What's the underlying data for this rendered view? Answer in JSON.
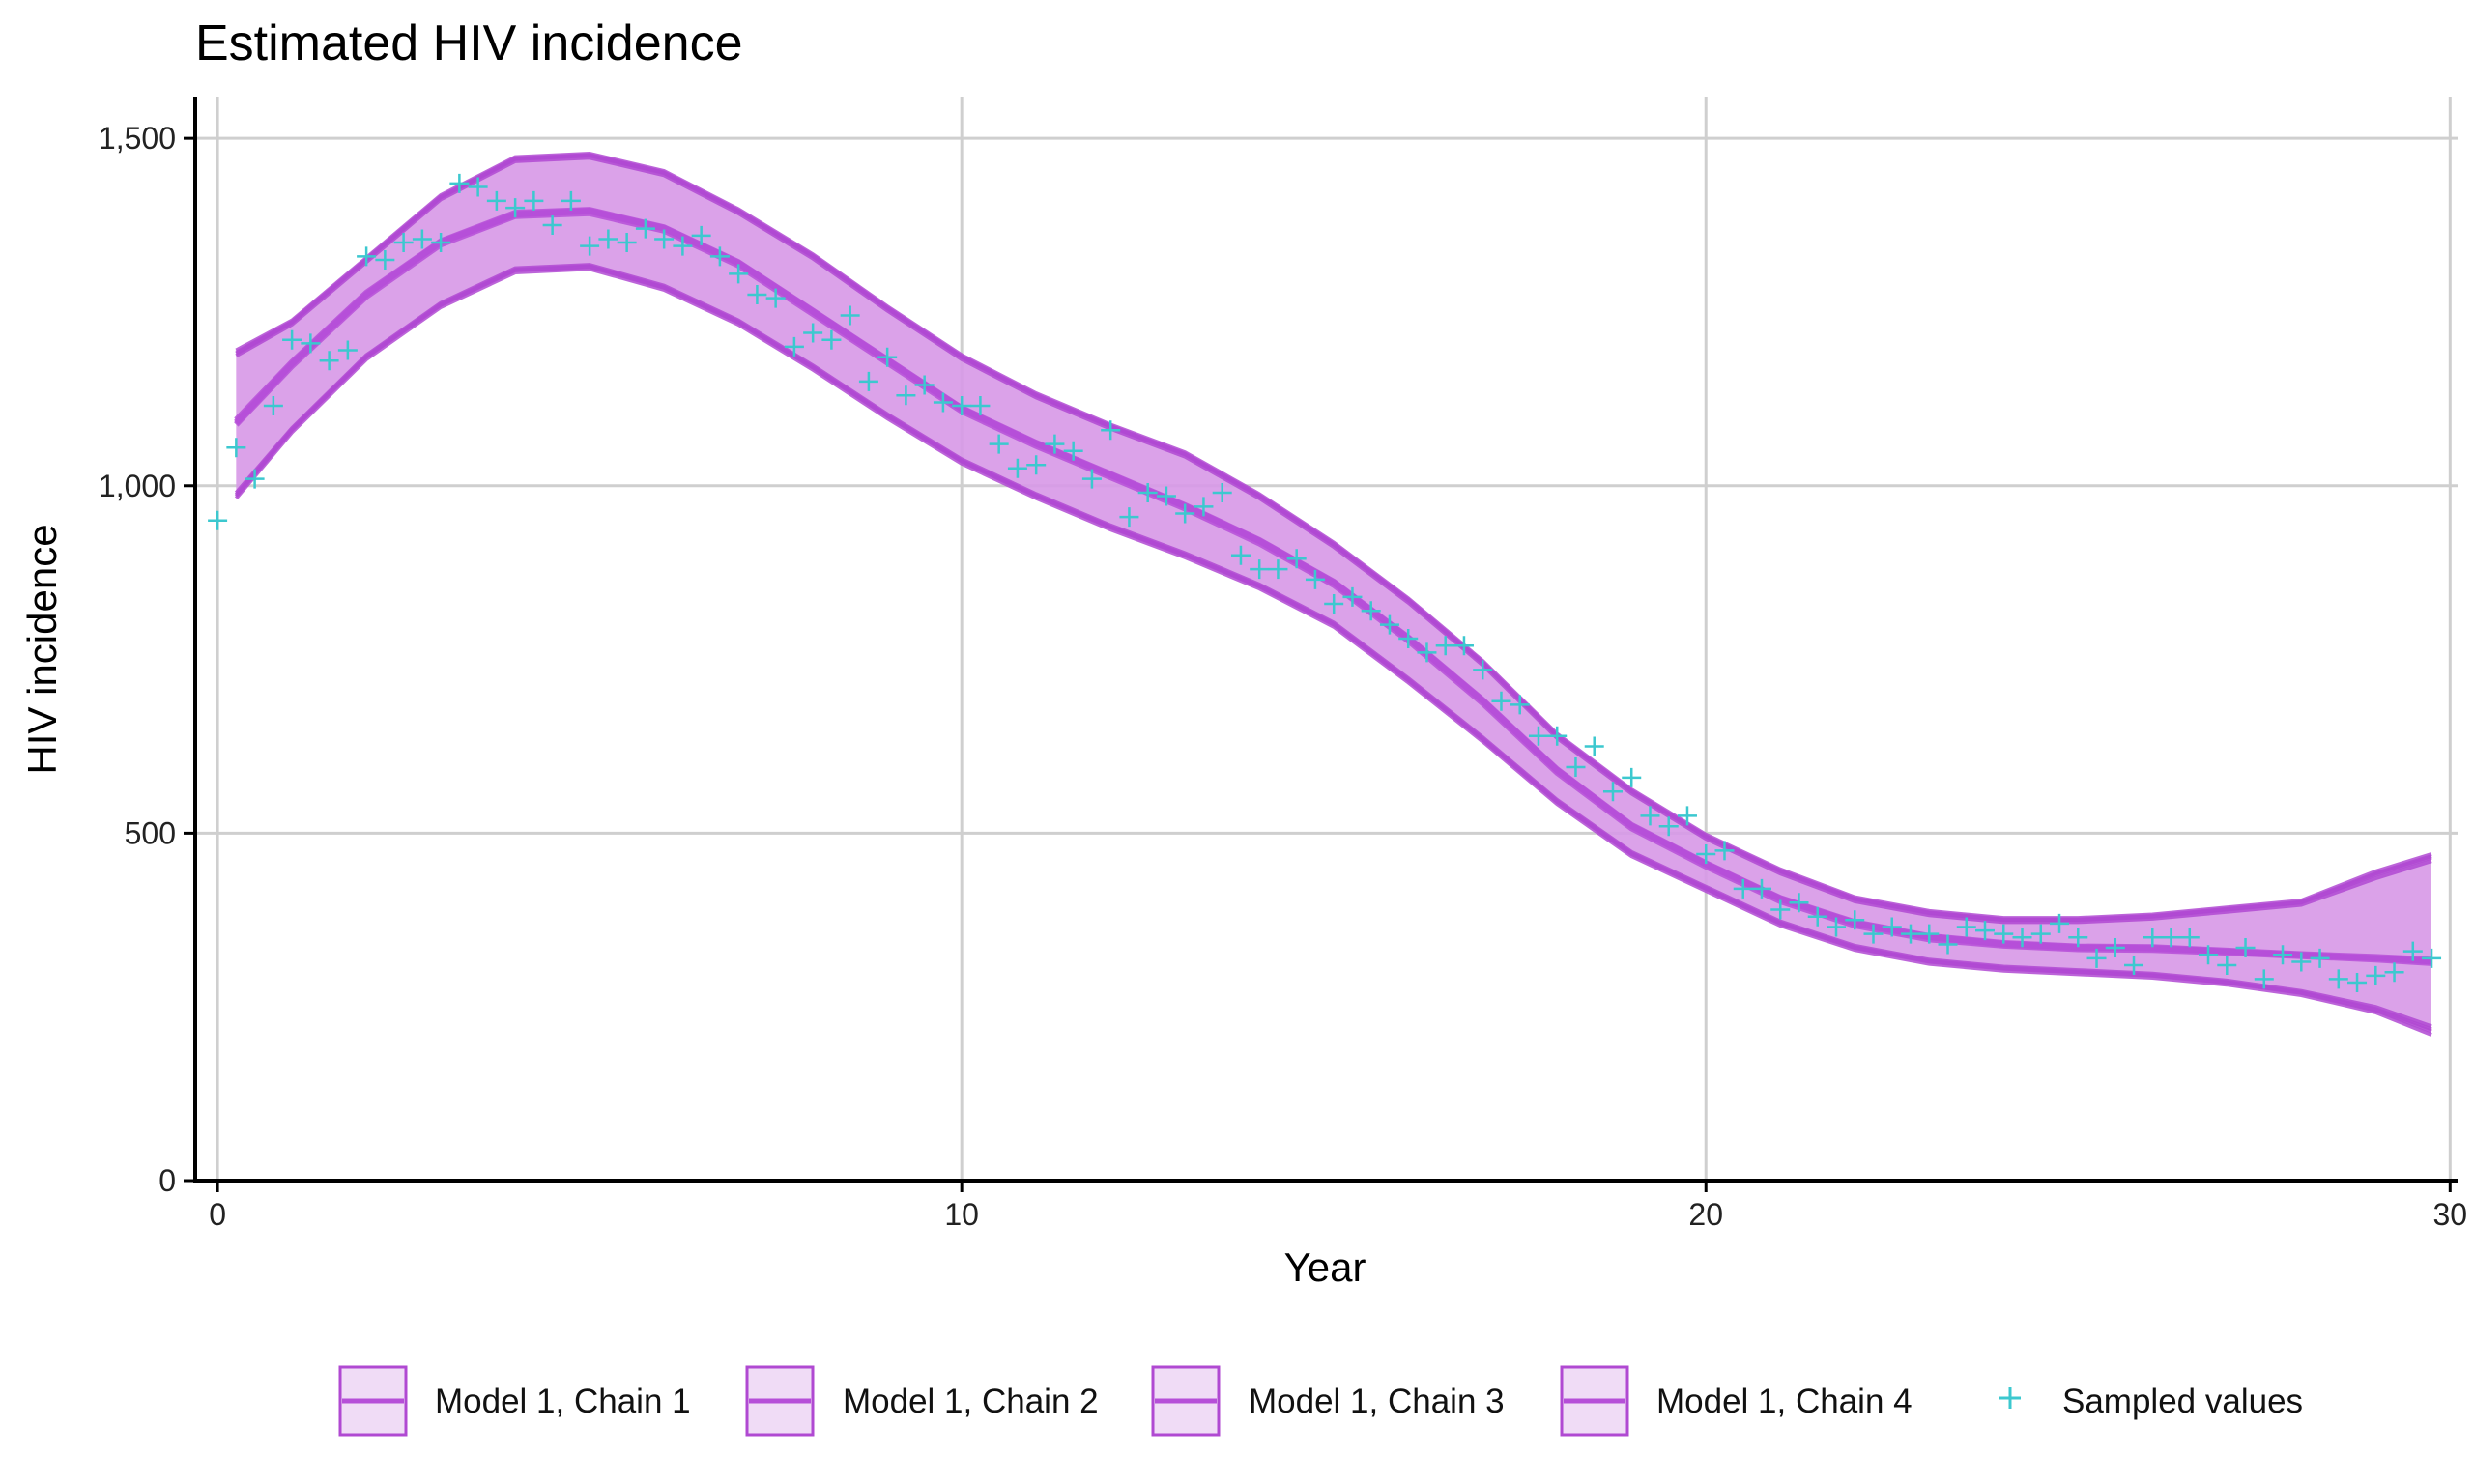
{
  "chart_data": {
    "type": "area",
    "title": "Estimated HIV incidence",
    "xlabel": "Year",
    "ylabel": "HIV incidence",
    "xlim": [
      -0.3,
      30.1
    ],
    "ylim": [
      0,
      1560
    ],
    "xticks": [
      0,
      10,
      20,
      30
    ],
    "xtick_labels": [
      "0",
      "10",
      "20",
      "30"
    ],
    "yticks": [
      0,
      500,
      1000,
      1500
    ],
    "ytick_labels": [
      "0",
      "500",
      "1,000",
      "1,500"
    ],
    "grid": true,
    "legend_position": "bottom",
    "colors": {
      "band_fill": "#d79ae6",
      "band_edge": "#b049d2",
      "median_line": "#b64fd8",
      "points": "#3cc8cf",
      "legend_key_fill": "#f0dcf6"
    },
    "series": [
      {
        "name": "Model 1, Chain 1",
        "x": [
          0.25,
          1,
          2,
          3,
          4,
          5,
          6,
          7,
          8,
          9,
          10,
          11,
          12,
          13,
          14,
          15,
          16,
          17,
          18,
          19,
          20,
          21,
          22,
          23,
          24,
          25,
          26,
          27,
          28,
          29,
          29.75
        ],
        "median": [
          1090,
          1175,
          1275,
          1350,
          1390,
          1395,
          1370,
          1320,
          1250,
          1180,
          1110,
          1060,
          1015,
          970,
          920,
          860,
          780,
          690,
          590,
          510,
          455,
          405,
          370,
          350,
          340,
          335,
          335,
          330,
          325,
          320,
          315
        ],
        "lower": [
          985,
          1080,
          1185,
          1260,
          1310,
          1315,
          1285,
          1235,
          1170,
          1100,
          1035,
          985,
          940,
          900,
          855,
          800,
          720,
          635,
          545,
          470,
          420,
          370,
          335,
          315,
          305,
          300,
          295,
          285,
          270,
          245,
          215
        ],
        "upper": [
          1190,
          1235,
          1325,
          1415,
          1470,
          1475,
          1450,
          1395,
          1330,
          1255,
          1185,
          1130,
          1085,
          1045,
          985,
          915,
          835,
          745,
          640,
          560,
          495,
          445,
          405,
          385,
          375,
          375,
          380,
          390,
          400,
          440,
          465
        ]
      },
      {
        "name": "Model 1, Chain 2",
        "x": [
          0.25,
          1,
          2,
          3,
          4,
          5,
          6,
          7,
          8,
          9,
          10,
          11,
          12,
          13,
          14,
          15,
          16,
          17,
          18,
          19,
          20,
          21,
          22,
          23,
          24,
          25,
          26,
          27,
          28,
          29,
          29.75
        ],
        "median": [
          1095,
          1178,
          1278,
          1352,
          1393,
          1397,
          1372,
          1322,
          1252,
          1182,
          1112,
          1062,
          1017,
          972,
          922,
          862,
          782,
          692,
          592,
          512,
          457,
          407,
          372,
          352,
          342,
          337,
          336,
          331,
          326,
          322,
          318
        ],
        "lower": [
          990,
          1083,
          1188,
          1263,
          1313,
          1318,
          1288,
          1238,
          1173,
          1103,
          1038,
          988,
          943,
          903,
          858,
          803,
          723,
          638,
          548,
          473,
          423,
          373,
          338,
          318,
          308,
          303,
          298,
          288,
          273,
          250,
          222
        ],
        "upper": [
          1195,
          1238,
          1328,
          1418,
          1473,
          1478,
          1453,
          1398,
          1333,
          1258,
          1188,
          1133,
          1088,
          1048,
          988,
          918,
          838,
          748,
          643,
          563,
          498,
          448,
          408,
          388,
          378,
          378,
          383,
          393,
          403,
          445,
          470
        ]
      },
      {
        "name": "Model 1, Chain 3",
        "x": [
          0.25,
          1,
          2,
          3,
          4,
          5,
          6,
          7,
          8,
          9,
          10,
          11,
          12,
          13,
          14,
          15,
          16,
          17,
          18,
          19,
          20,
          21,
          22,
          23,
          24,
          25,
          26,
          27,
          28,
          29,
          29.75
        ],
        "median": [
          1088,
          1172,
          1272,
          1347,
          1388,
          1392,
          1367,
          1317,
          1247,
          1177,
          1107,
          1057,
          1012,
          967,
          917,
          857,
          777,
          687,
          587,
          507,
          452,
          402,
          367,
          347,
          338,
          333,
          332,
          328,
          323,
          318,
          313
        ],
        "lower": [
          982,
          1077,
          1182,
          1257,
          1307,
          1312,
          1282,
          1232,
          1167,
          1097,
          1032,
          982,
          937,
          897,
          852,
          797,
          717,
          632,
          542,
          467,
          417,
          367,
          332,
          312,
          302,
          297,
          292,
          282,
          267,
          242,
          210
        ],
        "upper": [
          1187,
          1232,
          1322,
          1412,
          1467,
          1472,
          1447,
          1392,
          1327,
          1252,
          1182,
          1127,
          1082,
          1042,
          982,
          912,
          832,
          742,
          637,
          557,
          492,
          442,
          402,
          382,
          372,
          372,
          377,
          387,
          397,
          435,
          460
        ]
      },
      {
        "name": "Model 1, Chain 4",
        "x": [
          0.25,
          1,
          2,
          3,
          4,
          5,
          6,
          7,
          8,
          9,
          10,
          11,
          12,
          13,
          14,
          15,
          16,
          17,
          18,
          19,
          20,
          21,
          22,
          23,
          24,
          25,
          26,
          27,
          28,
          29,
          29.75
        ],
        "median": [
          1092,
          1176,
          1276,
          1351,
          1391,
          1396,
          1371,
          1321,
          1251,
          1181,
          1111,
          1061,
          1016,
          971,
          921,
          861,
          781,
          691,
          591,
          511,
          456,
          406,
          371,
          351,
          341,
          336,
          334,
          330,
          324,
          320,
          316
        ],
        "lower": [
          987,
          1081,
          1186,
          1261,
          1311,
          1316,
          1286,
          1236,
          1171,
          1101,
          1036,
          986,
          941,
          901,
          856,
          801,
          721,
          636,
          546,
          471,
          421,
          371,
          336,
          316,
          306,
          301,
          296,
          286,
          271,
          247,
          218
        ],
        "upper": [
          1192,
          1236,
          1326,
          1416,
          1471,
          1476,
          1451,
          1396,
          1331,
          1256,
          1186,
          1131,
          1086,
          1046,
          986,
          916,
          836,
          746,
          641,
          561,
          496,
          446,
          406,
          386,
          376,
          376,
          381,
          391,
          401,
          442,
          467
        ]
      },
      {
        "name": "Sampled values",
        "x": [
          0,
          0.25,
          0.5,
          0.75,
          1,
          1.25,
          1.5,
          1.75,
          2,
          2.25,
          2.5,
          2.75,
          3,
          3.25,
          3.5,
          3.75,
          4,
          4.25,
          4.5,
          4.75,
          5,
          5.25,
          5.5,
          5.75,
          6,
          6.25,
          6.5,
          6.75,
          7,
          7.25,
          7.5,
          7.75,
          8,
          8.25,
          8.5,
          8.75,
          9,
          9.25,
          9.5,
          9.75,
          10,
          10.25,
          10.5,
          10.75,
          11,
          11.25,
          11.5,
          11.75,
          12,
          12.25,
          12.5,
          12.75,
          13,
          13.25,
          13.5,
          13.75,
          14,
          14.25,
          14.5,
          14.75,
          15,
          15.25,
          15.5,
          15.75,
          16,
          16.25,
          16.5,
          16.75,
          17,
          17.25,
          17.5,
          17.75,
          18,
          18.25,
          18.5,
          18.75,
          19,
          19.25,
          19.5,
          19.75,
          20,
          20.25,
          20.5,
          20.75,
          21,
          21.25,
          21.5,
          21.75,
          22,
          22.25,
          22.5,
          22.75,
          23,
          23.25,
          23.5,
          23.75,
          24,
          24.25,
          24.5,
          24.75,
          25,
          25.25,
          25.5,
          25.75,
          26,
          26.25,
          26.5,
          26.75,
          27,
          27.25,
          27.5,
          27.75,
          28,
          28.25,
          28.5,
          28.75,
          29,
          29.25,
          29.5,
          29.75
        ],
        "y": [
          950,
          1055,
          1010,
          1115,
          1210,
          1205,
          1180,
          1195,
          1330,
          1325,
          1350,
          1355,
          1350,
          1435,
          1430,
          1410,
          1400,
          1410,
          1375,
          1410,
          1345,
          1355,
          1350,
          1370,
          1355,
          1345,
          1360,
          1330,
          1305,
          1275,
          1270,
          1200,
          1220,
          1210,
          1245,
          1150,
          1185,
          1130,
          1145,
          1120,
          1115,
          1115,
          1060,
          1025,
          1030,
          1060,
          1050,
          1010,
          1080,
          955,
          990,
          985,
          960,
          970,
          990,
          900,
          880,
          880,
          895,
          865,
          830,
          840,
          820,
          800,
          780,
          760,
          770,
          770,
          735,
          690,
          685,
          640,
          640,
          595,
          625,
          560,
          580,
          525,
          510,
          525,
          470,
          475,
          420,
          420,
          390,
          400,
          380,
          365,
          375,
          355,
          365,
          355,
          355,
          340,
          365,
          360,
          355,
          350,
          355,
          370,
          350,
          320,
          335,
          310,
          350,
          350,
          350,
          325,
          310,
          335,
          290,
          325,
          315,
          320,
          290,
          285,
          295,
          300,
          330,
          320
        ]
      }
    ]
  },
  "legend": {
    "items": [
      {
        "label": "Model 1, Chain 1"
      },
      {
        "label": "Model 1, Chain 2"
      },
      {
        "label": "Model 1, Chain 3"
      },
      {
        "label": "Model 1, Chain 4"
      },
      {
        "label": "Sampled values"
      }
    ]
  }
}
